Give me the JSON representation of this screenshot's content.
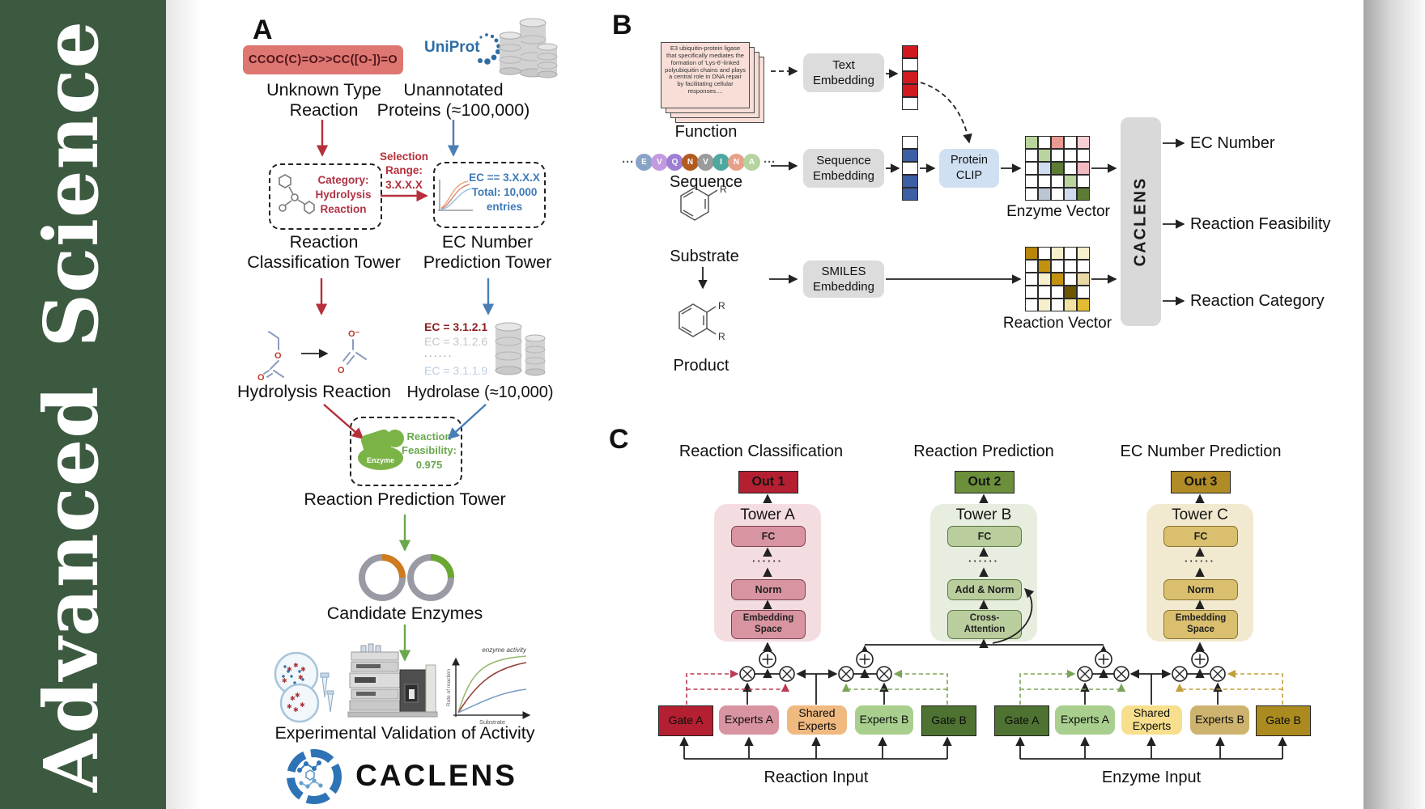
{
  "sidebar": {
    "title": "Advanced Science"
  },
  "panel_a": {
    "label": "A",
    "smiles": "CCOC(C)=O>>CC([O-])=O",
    "unknown_type": "Unknown Type\nReaction",
    "uniprot": "UniProt",
    "unannotated": "Unannotated\nProteins (≈100,000)",
    "selection_range": "Selection\nRange:\n3.X.X.X",
    "category_box": "Category:\nHydrolysis\nReaction",
    "ec_box": "EC == 3.X.X.X\nTotal: 10,000\nentries",
    "classification_tower": "Reaction\nClassification Tower",
    "ec_tower": "EC Number\nPrediction Tower",
    "hydrolysis_reaction": "Hydrolysis Reaction",
    "ec_list": [
      "EC = 3.1.2.1",
      "EC = 3.1.2.6",
      "......",
      "EC = 3.1.1.9"
    ],
    "hydrolase": "Hydrolase (≈10,000)",
    "enzyme_label": "Enzyme",
    "feasibility": "Reaction\nFeasibility:\n0.975",
    "prediction_tower": "Reaction Prediction Tower",
    "candidate_enzymes": "Candidate Enzymes",
    "graph": {
      "curve_label": "enzyme activity",
      "ylabel": "Rate of reaction",
      "xlabel": "Substrate"
    },
    "validation": "Experimental Validation of Activity",
    "logo_text": "CACLENS"
  },
  "panel_b": {
    "label": "B",
    "function_card": "E3 ubiquitin-protein ligase that specifically mediates the formation of 'Lys-6'-linked polyubiquitin chains and plays a central role in DNA repair by facilitating cellular responses....",
    "function_label": "Function",
    "sequence_ellipsis": "···",
    "sequence_letters": [
      {
        "letter": "E",
        "color": "#87a3c6"
      },
      {
        "letter": "V",
        "color": "#c39ae0"
      },
      {
        "letter": "Q",
        "color": "#9e7fd4"
      },
      {
        "letter": "N",
        "color": "#b35a1f"
      },
      {
        "letter": "V",
        "color": "#9b9b9b"
      },
      {
        "letter": "I",
        "color": "#4fa8a0"
      },
      {
        "letter": "N",
        "color": "#e8a08a"
      },
      {
        "letter": "A",
        "color": "#b5d4a0"
      }
    ],
    "sequence_label": "Sequence",
    "text_embedding": "Text\nEmbedding",
    "sequence_embedding": "Sequence\nEmbedding",
    "smiles_embedding": "SMILES\nEmbedding",
    "protein_clip": "Protein\nCLIP",
    "substrate_label": "Substrate",
    "product_label": "Product",
    "r_label": "R",
    "text_vector": [
      "#d11a1f",
      "#ffffff",
      "#d11a1f",
      "#d11a1f",
      "#ffffff"
    ],
    "sequence_vector": [
      "#ffffff",
      "#3c5fa5",
      "#ffffff",
      "#3c5fa5",
      "#3c5fa5"
    ],
    "enzyme_grid": [
      "#b9d49c",
      "#ffffff",
      "#e99a93",
      "#ffffff",
      "#f6cfd4",
      "#ffffff",
      "#b9d49c",
      "#ffffff",
      "#ffffff",
      "#ffffff",
      "#ffffff",
      "#cfdcf0",
      "#5c7c35",
      "#ffffff",
      "#f2b9c0",
      "#ffffff",
      "#ffffff",
      "#ffffff",
      "#b9d49c",
      "#ffffff",
      "#ffffff",
      "#bac5d1",
      "#ffffff",
      "#cfdcf0",
      "#5c7c35"
    ],
    "reaction_grid": [
      "#b8860b",
      "#ffffff",
      "#f6efcd",
      "#ffffff",
      "#f6efcd",
      "#ffffff",
      "#c2920f",
      "#ffffff",
      "#ffffff",
      "#ffffff",
      "#ffffff",
      "#f6efcd",
      "#c2920f",
      "#ffffff",
      "#ead9a6",
      "#ffffff",
      "#ffffff",
      "#ffffff",
      "#6e5600",
      "#ffffff",
      "#ffffff",
      "#f6efcd",
      "#ffffff",
      "#f3e3a2",
      "#e3bb35"
    ],
    "enzyme_vector_label": "Enzyme Vector",
    "reaction_vector_label": "Reaction Vector",
    "caclens": "CACLENS",
    "outputs": [
      "EC Number",
      "Reaction Feasibility",
      "Reaction Category"
    ]
  },
  "panel_c": {
    "label": "C",
    "titles": [
      "Reaction Classification",
      "Reaction Prediction",
      "EC Number Prediction"
    ],
    "outs": [
      "Out 1",
      "Out 2",
      "Out 3"
    ],
    "towers": [
      {
        "name": "Tower A",
        "fc": "FC",
        "dots": "······",
        "mid": "Norm",
        "bottom": "Embedding\nSpace"
      },
      {
        "name": "Tower B",
        "fc": "FC",
        "dots": "······",
        "mid": "Add & Norm",
        "bottom": "Cross-\nAttention"
      },
      {
        "name": "Tower C",
        "fc": "FC",
        "dots": "······",
        "mid": "Norm",
        "bottom": "Embedding\nSpace"
      }
    ],
    "reaction_group": {
      "gate_a": "Gate A",
      "experts_a": "Experts A",
      "shared": "Shared\nExperts",
      "experts_b": "Experts B",
      "gate_b": "Gate B",
      "input": "Reaction Input"
    },
    "enzyme_group": {
      "gate_a": "Gate A",
      "experts_a": "Experts A",
      "shared": "Shared\nExperts",
      "experts_b": "Experts B",
      "gate_b": "Gate B",
      "input": "Enzyme Input"
    }
  }
}
